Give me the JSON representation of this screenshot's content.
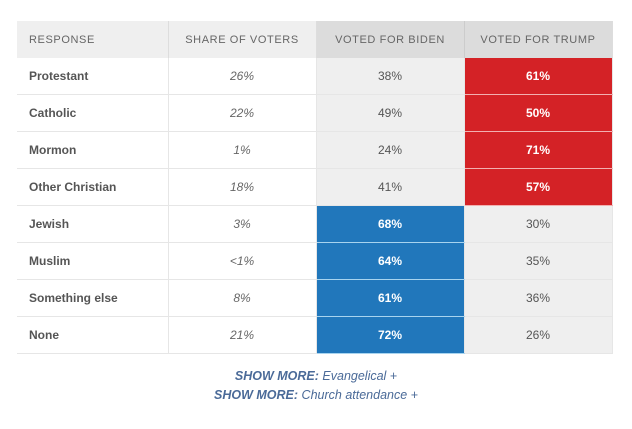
{
  "headers": [
    "Response",
    "Share of voters",
    "Voted for Biden",
    "Voted for Trump"
  ],
  "rows": [
    {
      "response": "Protestant",
      "share": "26%",
      "biden": "38%",
      "trump": "61%",
      "winner": "trump"
    },
    {
      "response": "Catholic",
      "share": "22%",
      "biden": "49%",
      "trump": "50%",
      "winner": "trump"
    },
    {
      "response": "Mormon",
      "share": "1%",
      "biden": "24%",
      "trump": "71%",
      "winner": "trump"
    },
    {
      "response": "Other Christian",
      "share": "18%",
      "biden": "41%",
      "trump": "57%",
      "winner": "trump"
    },
    {
      "response": "Jewish",
      "share": "3%",
      "biden": "68%",
      "trump": "30%",
      "winner": "biden"
    },
    {
      "response": "Muslim",
      "share": "<1%",
      "biden": "64%",
      "trump": "35%",
      "winner": "biden"
    },
    {
      "response": "Something else",
      "share": "8%",
      "biden": "61%",
      "trump": "36%",
      "winner": "biden"
    },
    {
      "response": "None",
      "share": "21%",
      "biden": "72%",
      "trump": "26%",
      "winner": "biden"
    }
  ],
  "colors": {
    "biden": "#2177bb",
    "trump": "#d42226",
    "neutral": "#efefef"
  },
  "show_more": [
    {
      "prefix": "SHOW MORE:",
      "label": "Evangelical +"
    },
    {
      "prefix": "SHOW MORE:",
      "label": "Church attendance +"
    }
  ]
}
